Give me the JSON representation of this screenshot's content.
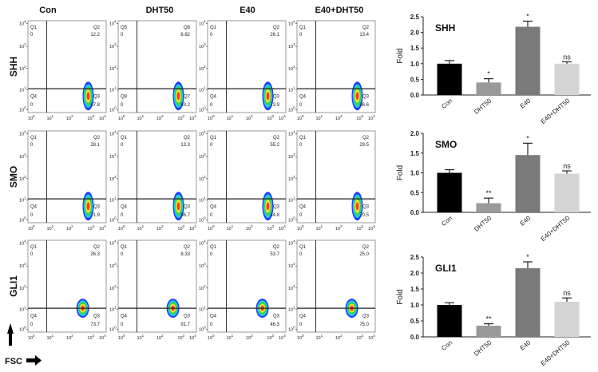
{
  "flow": {
    "columns": [
      "Con",
      "DHT50",
      "E40",
      "E40+DHT50"
    ],
    "y_axis_arrow_label": "",
    "x_axis_label": "FSC",
    "tick_base": "10",
    "tick_exponents": [
      "0",
      "1",
      "2",
      "3",
      "4"
    ],
    "rows": [
      {
        "marker": "SHH",
        "panels": [
          {
            "q_labels": [
              "Q1",
              "Q2",
              "Q3",
              "Q4"
            ],
            "q_values": [
              "0",
              "12.2",
              "87.8",
              "0"
            ]
          },
          {
            "q_labels": [
              "Q5",
              "Q6",
              "Q7",
              "Q8"
            ],
            "q_values": [
              "0",
              "6.82",
              "93.2",
              "0"
            ]
          },
          {
            "q_labels": [
              "Q1",
              "Q2",
              "Q3",
              "Q4"
            ],
            "q_values": [
              "0",
              "26.1",
              "73.9",
              "0"
            ]
          },
          {
            "q_labels": [
              "Q1",
              "Q2",
              "Q3",
              "Q4"
            ],
            "q_values": [
              "0",
              "13.4",
              "86.6",
              "0"
            ]
          }
        ]
      },
      {
        "marker": "SMO",
        "panels": [
          {
            "q_labels": [
              "Q1",
              "Q2",
              "Q3",
              "Q4"
            ],
            "q_values": [
              "0",
              "28.1",
              "71.9",
              "0"
            ]
          },
          {
            "q_labels": [
              "Q1",
              "Q2",
              "Q3",
              "Q4"
            ],
            "q_values": [
              "0",
              "13.3",
              "86.7",
              "0"
            ]
          },
          {
            "q_labels": [
              "Q1",
              "Q2",
              "Q3",
              "Q4"
            ],
            "q_values": [
              "0",
              "55.2",
              "44.8",
              "0"
            ]
          },
          {
            "q_labels": [
              "Q1",
              "Q2",
              "Q3",
              "Q4"
            ],
            "q_values": [
              "0",
              "29.5",
              "70.5",
              "0"
            ]
          }
        ]
      },
      {
        "marker": "GLI1",
        "panels": [
          {
            "q_labels": [
              "Q1",
              "Q2",
              "Q3",
              "Q4"
            ],
            "q_values": [
              "0",
              "26.3",
              "73.7",
              "0"
            ]
          },
          {
            "q_labels": [
              "Q1",
              "Q2",
              "Q3",
              "Q4"
            ],
            "q_values": [
              "0",
              "8.33",
              "91.7",
              "0"
            ]
          },
          {
            "q_labels": [
              "Q1",
              "Q2",
              "Q3",
              "Q4"
            ],
            "q_values": [
              "0",
              "53.7",
              "46.3",
              "0"
            ]
          },
          {
            "q_labels": [
              "Q1",
              "Q2",
              "Q3",
              "Q4"
            ],
            "q_values": [
              "0",
              "25.0",
              "75.0",
              "0"
            ]
          }
        ]
      }
    ]
  },
  "chart_data": [
    {
      "type": "bar",
      "title": "SHH",
      "ylabel": "Fold",
      "xlabel": "",
      "categories": [
        "Con",
        "DHT50",
        "E40",
        "E40+DHT50"
      ],
      "values": [
        1.0,
        0.4,
        2.18,
        1.0
      ],
      "errors": [
        0.1,
        0.12,
        0.18,
        0.06
      ],
      "significance": [
        "",
        "*",
        "*",
        "ns"
      ],
      "ylim": [
        0,
        2.5
      ],
      "yticks": [
        "0.0",
        "0.5",
        "1.0",
        "1.5",
        "2.0",
        "2.5"
      ],
      "grid": false,
      "colors": [
        "#000000",
        "#9a9a9a",
        "#7a7a7a",
        "#d4d4d4"
      ]
    },
    {
      "type": "bar",
      "title": "SMO",
      "ylabel": "Fold",
      "xlabel": "",
      "categories": [
        "Con",
        "DHT50",
        "E40",
        "E40+DHT50"
      ],
      "values": [
        1.0,
        0.23,
        1.45,
        0.98
      ],
      "errors": [
        0.08,
        0.13,
        0.3,
        0.07
      ],
      "significance": [
        "",
        "**",
        "*",
        "ns"
      ],
      "ylim": [
        0,
        2.0
      ],
      "yticks": [
        "0.0",
        "0.5",
        "1.0",
        "1.5",
        "2.0"
      ],
      "grid": false,
      "colors": [
        "#000000",
        "#9a9a9a",
        "#7a7a7a",
        "#d4d4d4"
      ]
    },
    {
      "type": "bar",
      "title": "GLI1",
      "ylabel": "Fold",
      "xlabel": "",
      "categories": [
        "Con",
        "DHT50",
        "E40",
        "E40+DHT50"
      ],
      "values": [
        1.0,
        0.35,
        2.15,
        1.1
      ],
      "errors": [
        0.07,
        0.06,
        0.2,
        0.12
      ],
      "significance": [
        "",
        "**",
        "*",
        "ns"
      ],
      "ylim": [
        0,
        2.5
      ],
      "yticks": [
        "0.0",
        "0.5",
        "1.0",
        "1.5",
        "2.0",
        "2.5"
      ],
      "grid": false,
      "colors": [
        "#000000",
        "#9a9a9a",
        "#7a7a7a",
        "#d4d4d4"
      ]
    }
  ]
}
